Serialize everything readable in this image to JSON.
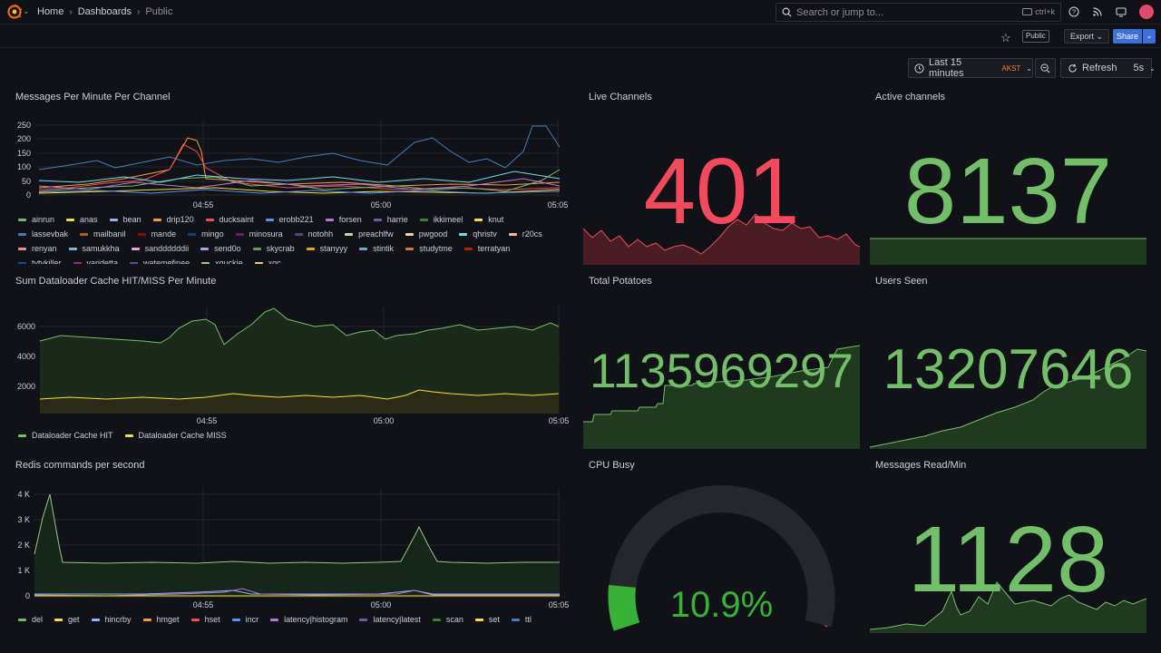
{
  "topbar": {
    "breadcrumbs": [
      "Home",
      "Dashboards",
      "Public"
    ],
    "search_placeholder": "Search or jump to...",
    "search_shortcut": "ctrl+k"
  },
  "toolbar": {
    "public_badge": "Public",
    "export_label": "Export",
    "share_label": "Share"
  },
  "timepicker": {
    "range_label": "Last 15 minutes",
    "timezone": "AKST",
    "refresh_label": "Refresh",
    "refresh_interval": "5s"
  },
  "panels": {
    "messages_per_minute": {
      "title": "Messages Per Minute Per Channel",
      "y_ticks": [
        "250",
        "200",
        "150",
        "100",
        "50",
        "0"
      ],
      "x_ticks": [
        "04:55",
        "05:00",
        "05:05"
      ],
      "legend": [
        {
          "name": "ainrun",
          "color": "#73bf69"
        },
        {
          "name": "anas",
          "color": "#fade2a"
        },
        {
          "name": "bean",
          "color": "#8ab8ff"
        },
        {
          "name": "drip120",
          "color": "#ff9830"
        },
        {
          "name": "ducksaint",
          "color": "#f2495c"
        },
        {
          "name": "erobb221",
          "color": "#5794f2"
        },
        {
          "name": "forsen",
          "color": "#b877d9"
        },
        {
          "name": "harrie",
          "color": "#705da0"
        },
        {
          "name": "ikkimeel",
          "color": "#37872d"
        },
        {
          "name": "knut",
          "color": "#fade2a"
        },
        {
          "name": "lassevbak",
          "color": "#447ebc"
        },
        {
          "name": "mailbanil",
          "color": "#c15c17"
        },
        {
          "name": "mande",
          "color": "#890f02"
        },
        {
          "name": "mingo",
          "color": "#0a437c"
        },
        {
          "name": "minosura",
          "color": "#6d1f62"
        },
        {
          "name": "notohh",
          "color": "#584477"
        },
        {
          "name": "preachlfw",
          "color": "#b7dbab"
        },
        {
          "name": "pwgood",
          "color": "#f4d598"
        },
        {
          "name": "qhristv",
          "color": "#70dbed"
        },
        {
          "name": "r20cs",
          "color": "#f9ba8f"
        },
        {
          "name": "renyan",
          "color": "#f29191"
        },
        {
          "name": "samukkha",
          "color": "#82b5d8"
        },
        {
          "name": "sanddddddii",
          "color": "#e5a8e2"
        },
        {
          "name": "send0o",
          "color": "#aea2e0"
        },
        {
          "name": "skycrab",
          "color": "#629e51"
        },
        {
          "name": "stanyyy",
          "color": "#e5ac0e"
        },
        {
          "name": "stintik",
          "color": "#64b0c8"
        },
        {
          "name": "studytme",
          "color": "#e0752d"
        },
        {
          "name": "terratyan",
          "color": "#bf1b00"
        },
        {
          "name": "tytykiller",
          "color": "#0a50a1"
        },
        {
          "name": "varidetta",
          "color": "#962d82"
        },
        {
          "name": "watemefinee",
          "color": "#614d93"
        },
        {
          "name": "xguckie",
          "color": "#9ac48a"
        },
        {
          "name": "xqc",
          "color": "#f2c96d"
        }
      ]
    },
    "live_channels": {
      "title": "Live Channels",
      "value": "401",
      "color": "#f2495c"
    },
    "active_channels": {
      "title": "Active channels",
      "value": "8137",
      "color": "#73bf69"
    },
    "dataloader": {
      "title": "Sum Dataloader Cache HIT/MISS Per Minute",
      "y_ticks": [
        "6000",
        "4000",
        "2000"
      ],
      "x_ticks": [
        "04:55",
        "05:00",
        "05:05"
      ],
      "legend": [
        {
          "name": "Dataloader Cache HIT",
          "color": "#73bf69"
        },
        {
          "name": "Dataloader Cache MISS",
          "color": "#fade2a"
        }
      ]
    },
    "total_potatoes": {
      "title": "Total Potatoes",
      "value": "1135969297",
      "color": "#73bf69"
    },
    "users_seen": {
      "title": "Users Seen",
      "value": "13207646",
      "color": "#73bf69"
    },
    "redis": {
      "title": "Redis commands per second",
      "y_ticks": [
        "4 K",
        "3 K",
        "2 K",
        "1 K",
        "0"
      ],
      "x_ticks": [
        "04:55",
        "05:00",
        "05:05"
      ],
      "legend": [
        {
          "name": "del",
          "color": "#73bf69"
        },
        {
          "name": "get",
          "color": "#fade2a"
        },
        {
          "name": "hincrby",
          "color": "#8ab8ff"
        },
        {
          "name": "hmget",
          "color": "#ff9830"
        },
        {
          "name": "hset",
          "color": "#f2495c"
        },
        {
          "name": "incr",
          "color": "#5794f2"
        },
        {
          "name": "latency|histogram",
          "color": "#b877d9"
        },
        {
          "name": "latency|latest",
          "color": "#705da0"
        },
        {
          "name": "scan",
          "color": "#37872d"
        },
        {
          "name": "set",
          "color": "#fade2a"
        },
        {
          "name": "ttl",
          "color": "#447ebc"
        }
      ]
    },
    "cpu_busy": {
      "title": "CPU Busy",
      "value": "10.9%",
      "percent": 10.9,
      "color": "#37b236"
    },
    "messages_read": {
      "title": "Messages Read/Min",
      "value": "1128",
      "color": "#73bf69"
    }
  }
}
